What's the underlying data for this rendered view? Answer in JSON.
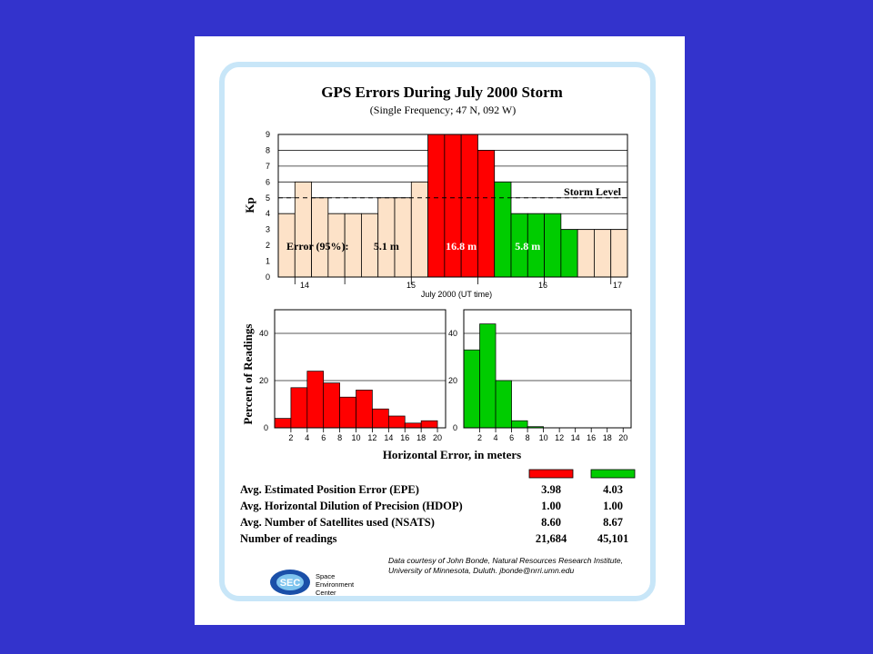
{
  "title": "GPS Errors During July 2000 Storm",
  "subtitle": "(Single Frequency;  47 N, 092 W)",
  "colors": {
    "background": "#3333cc",
    "frame": "#c8e6f8",
    "red": "#ff0000",
    "green": "#00cc00",
    "tan": "#fde2c8",
    "grid": "#222222"
  },
  "chart_data": [
    {
      "type": "bar",
      "ylabel": "Kp",
      "xlabel": "July 2000 (UT time)",
      "ylim": [
        0,
        9
      ],
      "yticks": [
        0,
        1,
        2,
        3,
        4,
        5,
        6,
        7,
        8,
        9
      ],
      "x_tick_labels": [
        "14",
        "15",
        "16",
        "17"
      ],
      "storm_level": 5,
      "storm_label": "Storm Level",
      "values": [
        4,
        6,
        5,
        4,
        4,
        4,
        5,
        5,
        6,
        9,
        9,
        9,
        8,
        6,
        4,
        4,
        4,
        3,
        3,
        3,
        3
      ],
      "colors": [
        "tan",
        "tan",
        "tan",
        "tan",
        "tan",
        "tan",
        "tan",
        "tan",
        "tan",
        "red",
        "red",
        "red",
        "red",
        "green",
        "green",
        "green",
        "green",
        "green",
        "tan",
        "tan",
        "tan"
      ],
      "annotations": [
        "Error (95%):",
        "5.1 m",
        "16.8 m",
        "5.8 m"
      ]
    },
    {
      "type": "bar",
      "series_color": "red",
      "ylabel": "Percent of Readings",
      "xlabel": "Horizontal Error, in meters",
      "ylim": [
        0,
        50
      ],
      "yticks": [
        0,
        20,
        40
      ],
      "xticks": [
        2,
        4,
        6,
        8,
        10,
        12,
        14,
        16,
        18,
        20
      ],
      "bin_width": 2,
      "values": [
        4,
        17,
        24,
        19,
        13,
        16,
        8,
        5,
        2,
        3
      ]
    },
    {
      "type": "bar",
      "series_color": "green",
      "ylim": [
        0,
        50
      ],
      "yticks": [
        0,
        20,
        40
      ],
      "xticks": [
        2,
        4,
        6,
        8,
        10,
        12,
        14,
        16,
        18,
        20
      ],
      "bin_width": 2,
      "values": [
        33,
        44,
        20,
        3,
        0.5,
        0,
        0,
        0,
        0,
        0
      ]
    }
  ],
  "stats": [
    {
      "label": "Avg. Estimated Position Error (EPE)",
      "red": "3.98",
      "green": "4.03"
    },
    {
      "label": "Avg. Horizontal Dilution of Precision (HDOP)",
      "red": "1.00",
      "green": "1.00"
    },
    {
      "label": "Avg. Number of Satellites used (NSATS)",
      "red": "8.60",
      "green": "8.67"
    },
    {
      "label": "Number of readings",
      "red": "21,684",
      "green": "45,101"
    }
  ],
  "credit": {
    "line1": "Data courtesy of John Bonde, Natural Resources Research Institute,",
    "line2": "University of Minnesota, Duluth. jbonde@nrri.umn.edu"
  },
  "logo": {
    "mark": "SEC",
    "line1": "Space",
    "line2": "Environment",
    "line3": "Center"
  }
}
